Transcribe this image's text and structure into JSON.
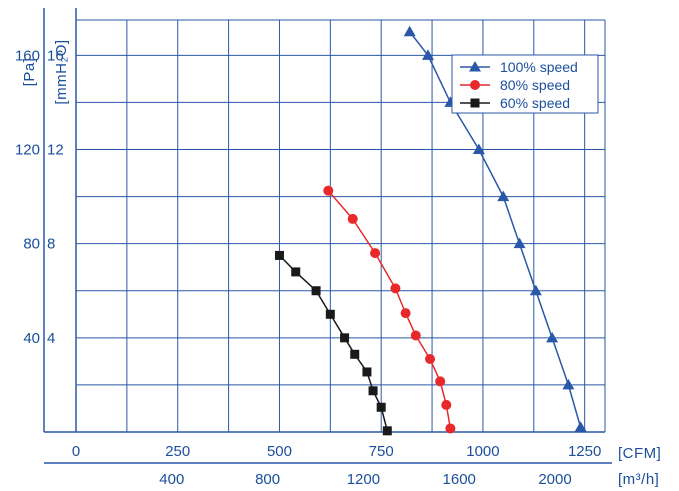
{
  "chart_data": {
    "type": "line",
    "x_unit_primary": "[CFM]",
    "x_unit_secondary": "[m³/h]",
    "y_unit_pa": "[Pa]",
    "y_unit_mmh2o": "[mmH₂O]",
    "xlim": [
      0,
      1300
    ],
    "ylim": [
      0,
      1750
    ],
    "x_ticks_cfm": [
      "0",
      "250",
      "500",
      "750",
      "1000",
      "1250"
    ],
    "x_ticks_m3h": [
      "400",
      "800",
      "1200",
      "1600",
      "2000"
    ],
    "y_ticks_pa": [
      "40",
      "80",
      "120",
      "160"
    ],
    "y_ticks_mmh2o": [
      "4",
      "8",
      "12",
      "16"
    ],
    "grid": true,
    "legend_position": "top-right",
    "series": [
      {
        "name": "100%  speed",
        "marker": "triangle",
        "color": "#2a58a8",
        "x": [
          820,
          865,
          920,
          990,
          1050,
          1090,
          1130,
          1170,
          1210,
          1240
        ],
        "y": [
          1700,
          1600,
          1400,
          1200,
          1000,
          800,
          600,
          400,
          200,
          20
        ]
      },
      {
        "name": "80%  speed",
        "marker": "circle",
        "color": "#e8292b",
        "x": [
          620,
          680,
          735,
          785,
          810,
          835,
          870,
          895,
          910,
          920
        ],
        "y": [
          1025,
          905,
          760,
          610,
          505,
          410,
          310,
          215,
          115,
          15
        ]
      },
      {
        "name": "60%  speed",
        "marker": "square",
        "color": "#1a1a1a",
        "x": [
          500,
          540,
          590,
          625,
          660,
          685,
          715,
          730,
          750,
          765
        ],
        "y": [
          750,
          680,
          600,
          500,
          400,
          330,
          255,
          175,
          105,
          5
        ]
      }
    ]
  }
}
